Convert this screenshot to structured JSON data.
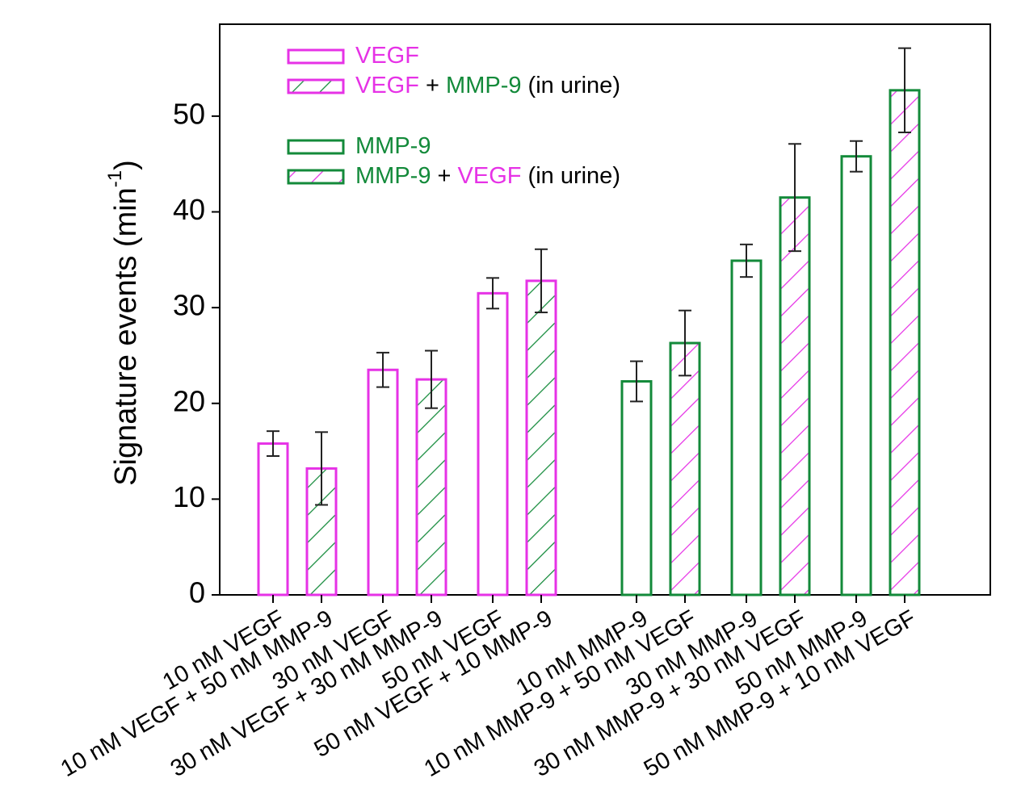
{
  "chart_data": {
    "type": "bar",
    "ylabel": {
      "text": "Signature events (min",
      "sup": "-1",
      "end": ")"
    },
    "ylim": [
      0,
      59.6
    ],
    "yticks": [
      0,
      10,
      20,
      30,
      40,
      50
    ],
    "groups": [
      {
        "outline": "#e632e6",
        "hatch": "#138a3a",
        "categories": [
          "10 nM VEGF",
          "10 nM VEGF + 50 nM MMP-9",
          "30 nM VEGF",
          "30 nM VEGF + 30 nM MMP-9",
          "50 nM VEGF",
          "50 nM VEGF + 10 MMP-9"
        ],
        "values": [
          15.8,
          13.2,
          23.5,
          22.5,
          31.5,
          32.8
        ],
        "errors": [
          1.3,
          3.8,
          1.8,
          3.0,
          1.6,
          3.3
        ]
      },
      {
        "outline": "#138a3a",
        "hatch": "#e632e6",
        "categories": [
          "10 nM MMP-9",
          "10 nM MMP-9 + 50 nM VEGF",
          "30 nM MMP-9",
          "30 nM MMP-9 + 30 nM VEGF",
          "50 nM MMP-9",
          "50 nM MMP-9 + 10 nM VEGF"
        ],
        "values": [
          22.3,
          26.3,
          34.9,
          41.5,
          45.8,
          52.7
        ],
        "errors": [
          2.1,
          3.4,
          1.7,
          5.6,
          1.6,
          4.4
        ]
      }
    ],
    "legend": [
      {
        "outline": "#e632e6",
        "hatch": null,
        "parts": [
          {
            "text": "VEGF",
            "color": "#e632e6"
          }
        ]
      },
      {
        "outline": "#e632e6",
        "hatch": "#138a3a",
        "parts": [
          {
            "text": "VEGF",
            "color": "#e632e6"
          },
          {
            "text": " + ",
            "color": "#000000"
          },
          {
            "text": "MMP-9",
            "color": "#138a3a"
          },
          {
            "text": " (in urine)",
            "color": "#000000"
          }
        ]
      },
      {
        "outline": "#138a3a",
        "hatch": null,
        "parts": [
          {
            "text": "MMP-9",
            "color": "#138a3a"
          }
        ]
      },
      {
        "outline": "#138a3a",
        "hatch": "#e632e6",
        "parts": [
          {
            "text": "MMP-9",
            "color": "#138a3a"
          },
          {
            "text": " + ",
            "color": "#000000"
          },
          {
            "text": "VEGF",
            "color": "#e632e6"
          },
          {
            "text": " (in urine)",
            "color": "#000000"
          }
        ]
      }
    ]
  }
}
